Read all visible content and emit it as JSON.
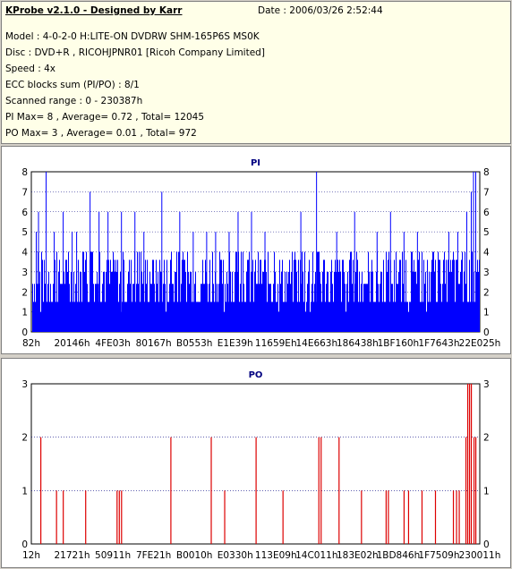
{
  "info": {
    "title": "KProbe v2.1.0 - Designed by Karr",
    "date": "Date : 2006/03/26 2:52:44",
    "lines": [
      "Model : 4-0-2-0 H:LITE-ON DVDRW SHM-165P6S MS0K",
      "Disc : DVD+R , RICOHJPNR01 [Ricoh Company Limited]",
      "Speed : 4x",
      "ECC blocks sum (PI/PO) : 8/1",
      "Scanned range : 0 - 230387h",
      "PI Max= 8 , Average= 0.72 , Total= 12045",
      "PO Max= 3 , Average= 0.01 , Total= 972"
    ]
  },
  "colors": {
    "pi": "#0000ff",
    "po": "#dd0000",
    "grid": "#000080",
    "panel_bg": "#ffffe8"
  },
  "chart_data": [
    {
      "type": "bar",
      "title": "PI",
      "xlabel": "",
      "ylabel": "",
      "ylim": [
        0,
        8
      ],
      "grid": true,
      "y_ticks": [
        0,
        1,
        2,
        3,
        4,
        5,
        6,
        7,
        8
      ],
      "x_tick_labels": [
        "82h",
        "20146h",
        "4FE03h",
        "80167h",
        "B0553h",
        "E1E39h",
        "11659Eh",
        "14E663h",
        "186438h",
        "1BF160h",
        "1F7643h",
        "22E025h"
      ],
      "baseline": {
        "x_start": 0.0,
        "x_end": 1.0,
        "levels": [
          1.5,
          2.4,
          3.0,
          3.6
        ]
      },
      "spikes": [
        {
          "x": 0.01,
          "v": 5
        },
        {
          "x": 0.015,
          "v": 6
        },
        {
          "x": 0.032,
          "v": 8
        },
        {
          "x": 0.05,
          "v": 5
        },
        {
          "x": 0.07,
          "v": 6
        },
        {
          "x": 0.09,
          "v": 5
        },
        {
          "x": 0.1,
          "v": 5
        },
        {
          "x": 0.13,
          "v": 7
        },
        {
          "x": 0.15,
          "v": 6
        },
        {
          "x": 0.17,
          "v": 6
        },
        {
          "x": 0.2,
          "v": 6
        },
        {
          "x": 0.23,
          "v": 6
        },
        {
          "x": 0.25,
          "v": 5
        },
        {
          "x": 0.29,
          "v": 7
        },
        {
          "x": 0.33,
          "v": 6
        },
        {
          "x": 0.36,
          "v": 5
        },
        {
          "x": 0.39,
          "v": 5
        },
        {
          "x": 0.41,
          "v": 5
        },
        {
          "x": 0.44,
          "v": 5
        },
        {
          "x": 0.46,
          "v": 6
        },
        {
          "x": 0.49,
          "v": 6
        },
        {
          "x": 0.52,
          "v": 5
        },
        {
          "x": 0.6,
          "v": 6
        },
        {
          "x": 0.635,
          "v": 8
        },
        {
          "x": 0.68,
          "v": 5
        },
        {
          "x": 0.72,
          "v": 6
        },
        {
          "x": 0.77,
          "v": 5
        },
        {
          "x": 0.8,
          "v": 6
        },
        {
          "x": 0.83,
          "v": 5
        },
        {
          "x": 0.86,
          "v": 5
        },
        {
          "x": 0.93,
          "v": 5
        },
        {
          "x": 0.95,
          "v": 5
        },
        {
          "x": 0.97,
          "v": 6
        },
        {
          "x": 0.98,
          "v": 7
        },
        {
          "x": 0.985,
          "v": 8
        },
        {
          "x": 0.99,
          "v": 8
        }
      ],
      "dips": [
        0.02,
        0.2,
        0.3,
        0.43,
        0.55,
        0.61,
        0.62,
        0.7,
        0.84,
        0.88
      ]
    },
    {
      "type": "bar",
      "title": "PO",
      "xlabel": "",
      "ylabel": "",
      "ylim": [
        0,
        3
      ],
      "grid": true,
      "y_ticks": [
        0,
        1,
        2,
        3
      ],
      "x_tick_labels": [
        "12h",
        "21721h",
        "50911h",
        "7FE21h",
        "B0010h",
        "E0330h",
        "113E09h",
        "14C011h",
        "183E02h",
        "1BD846h",
        "1F7509h",
        "230011h"
      ],
      "bars": [
        {
          "x": 0.02,
          "v": 2
        },
        {
          "x": 0.055,
          "v": 1
        },
        {
          "x": 0.07,
          "v": 1
        },
        {
          "x": 0.12,
          "v": 1
        },
        {
          "x": 0.19,
          "v": 1
        },
        {
          "x": 0.195,
          "v": 1
        },
        {
          "x": 0.2,
          "v": 1
        },
        {
          "x": 0.31,
          "v": 2
        },
        {
          "x": 0.4,
          "v": 2
        },
        {
          "x": 0.43,
          "v": 1
        },
        {
          "x": 0.5,
          "v": 2
        },
        {
          "x": 0.56,
          "v": 1
        },
        {
          "x": 0.64,
          "v": 2
        },
        {
          "x": 0.645,
          "v": 2
        },
        {
          "x": 0.685,
          "v": 2
        },
        {
          "x": 0.735,
          "v": 1
        },
        {
          "x": 0.79,
          "v": 1
        },
        {
          "x": 0.795,
          "v": 1
        },
        {
          "x": 0.83,
          "v": 1
        },
        {
          "x": 0.84,
          "v": 1
        },
        {
          "x": 0.87,
          "v": 1
        },
        {
          "x": 0.9,
          "v": 1
        },
        {
          "x": 0.94,
          "v": 1
        },
        {
          "x": 0.947,
          "v": 1
        },
        {
          "x": 0.953,
          "v": 1
        },
        {
          "x": 0.968,
          "v": 2
        },
        {
          "x": 0.972,
          "v": 3
        },
        {
          "x": 0.976,
          "v": 3
        },
        {
          "x": 0.98,
          "v": 3
        },
        {
          "x": 0.986,
          "v": 2
        },
        {
          "x": 0.99,
          "v": 2
        }
      ]
    }
  ]
}
